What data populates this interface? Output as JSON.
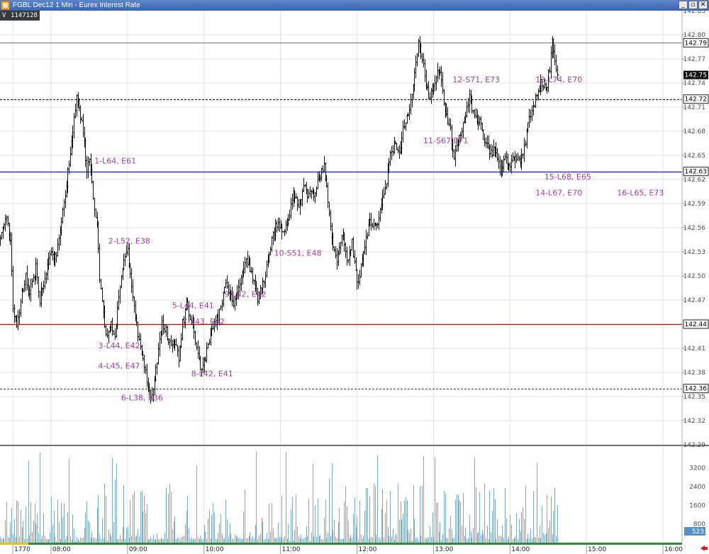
{
  "window": {
    "title": "FGBL Dec12 1 Min - Eurex Interest Rate",
    "min_glyph": "_",
    "max_glyph": "▫",
    "close_glyph": "✕"
  },
  "info": {
    "label": "V",
    "value": "1147128"
  },
  "chart_data": {
    "type": "ohlc",
    "instrument": "FGBL Dec12",
    "interval": "1 Min",
    "price_axis": {
      "ylim": [
        142.29,
        142.83
      ],
      "ticks": [
        "142.83",
        "142.80",
        "142.77",
        "142.74",
        "142.71",
        "142.68",
        "142.65",
        "142.62",
        "142.59",
        "142.56",
        "142.53",
        "142.50",
        "142.47",
        "142.44",
        "142.41",
        "142.38",
        "142.35",
        "142.32",
        "142.29"
      ]
    },
    "time_axis": {
      "xlim_minutes": [
        -40,
        495
      ],
      "ticks": [
        {
          "label": "1770",
          "minute": -30
        },
        {
          "label": "08:00",
          "minute": 0
        },
        {
          "label": "09:00",
          "minute": 60
        },
        {
          "label": "10:00",
          "minute": 120
        },
        {
          "label": "11:00",
          "minute": 180
        },
        {
          "label": "12:00",
          "minute": 240
        },
        {
          "label": "13:00",
          "minute": 300
        },
        {
          "label": "14:00",
          "minute": 360
        },
        {
          "label": "15:00",
          "minute": 420
        },
        {
          "label": "16:00",
          "minute": 480
        }
      ]
    },
    "levels": [
      {
        "price": 142.79,
        "label": "142.79",
        "color": "#888888",
        "style": "solid"
      },
      {
        "price": 142.72,
        "label": "142.72",
        "color": "#000000",
        "style": "dashed"
      },
      {
        "price": 142.63,
        "label": "142.63",
        "color": "#1515b8",
        "style": "solid"
      },
      {
        "price": 142.44,
        "label": "142.44",
        "color": "#cc0000",
        "style": "solid"
      },
      {
        "price": 142.36,
        "label": "142.36",
        "color": "#444444",
        "style": "dashed"
      }
    ],
    "last_price": {
      "price": 142.75,
      "label": "142.75"
    },
    "keypoints": [
      [
        -40,
        142.55
      ],
      [
        -35,
        142.57
      ],
      [
        -32,
        142.55
      ],
      [
        -30,
        142.46
      ],
      [
        -27,
        142.44
      ],
      [
        -24,
        142.47
      ],
      [
        -20,
        142.5
      ],
      [
        -17,
        142.48
      ],
      [
        -12,
        142.51
      ],
      [
        -9,
        142.47
      ],
      [
        -5,
        142.5
      ],
      [
        0,
        142.53
      ],
      [
        4,
        142.52
      ],
      [
        7,
        142.56
      ],
      [
        10,
        142.59
      ],
      [
        14,
        142.64
      ],
      [
        17,
        142.68
      ],
      [
        20,
        142.72
      ],
      [
        23,
        142.7
      ],
      [
        25,
        142.68
      ],
      [
        28,
        142.63
      ],
      [
        30,
        142.65
      ],
      [
        33,
        142.6
      ],
      [
        36,
        142.56
      ],
      [
        38,
        142.5
      ],
      [
        41,
        142.45
      ],
      [
        44,
        142.42
      ],
      [
        47,
        142.44
      ],
      [
        50,
        142.43
      ],
      [
        53,
        142.47
      ],
      [
        57,
        142.52
      ],
      [
        60,
        142.53
      ],
      [
        63,
        142.49
      ],
      [
        66,
        142.45
      ],
      [
        69,
        142.42
      ],
      [
        72,
        142.4
      ],
      [
        75,
        142.37
      ],
      [
        78,
        142.35
      ],
      [
        81,
        142.37
      ],
      [
        84,
        142.41
      ],
      [
        87,
        142.44
      ],
      [
        90,
        142.43
      ],
      [
        94,
        142.41
      ],
      [
        97,
        142.42
      ],
      [
        100,
        142.4
      ],
      [
        103,
        142.44
      ],
      [
        106,
        142.46
      ],
      [
        109,
        142.45
      ],
      [
        112,
        142.43
      ],
      [
        115,
        142.4
      ],
      [
        118,
        142.38
      ],
      [
        121,
        142.4
      ],
      [
        124,
        142.42
      ],
      [
        128,
        142.44
      ],
      [
        131,
        142.45
      ],
      [
        134,
        142.47
      ],
      [
        137,
        142.49
      ],
      [
        140,
        142.48
      ],
      [
        143,
        142.46
      ],
      [
        146,
        142.48
      ],
      [
        150,
        142.51
      ],
      [
        154,
        142.52
      ],
      [
        158,
        142.5
      ],
      [
        162,
        142.47
      ],
      [
        166,
        142.49
      ],
      [
        170,
        142.52
      ],
      [
        174,
        142.55
      ],
      [
        178,
        142.57
      ],
      [
        182,
        142.55
      ],
      [
        186,
        142.57
      ],
      [
        190,
        142.6
      ],
      [
        194,
        142.59
      ],
      [
        198,
        142.61
      ],
      [
        202,
        142.6
      ],
      [
        206,
        142.6
      ],
      [
        210,
        142.62
      ],
      [
        214,
        142.64
      ],
      [
        218,
        142.58
      ],
      [
        221,
        142.54
      ],
      [
        224,
        142.52
      ],
      [
        228,
        142.55
      ],
      [
        232,
        142.52
      ],
      [
        236,
        142.54
      ],
      [
        240,
        142.49
      ],
      [
        243,
        142.51
      ],
      [
        246,
        142.54
      ],
      [
        250,
        142.57
      ],
      [
        254,
        142.56
      ],
      [
        258,
        142.58
      ],
      [
        262,
        142.61
      ],
      [
        266,
        142.65
      ],
      [
        270,
        142.67
      ],
      [
        273,
        142.65
      ],
      [
        276,
        142.68
      ],
      [
        280,
        142.7
      ],
      [
        284,
        142.74
      ],
      [
        288,
        142.79
      ],
      [
        291,
        142.77
      ],
      [
        294,
        142.74
      ],
      [
        297,
        142.72
      ],
      [
        300,
        142.74
      ],
      [
        304,
        142.76
      ],
      [
        307,
        142.73
      ],
      [
        310,
        142.7
      ],
      [
        313,
        142.68
      ],
      [
        316,
        142.65
      ],
      [
        320,
        142.67
      ],
      [
        324,
        142.69
      ],
      [
        328,
        142.72
      ],
      [
        332,
        142.7
      ],
      [
        336,
        142.69
      ],
      [
        340,
        142.67
      ],
      [
        344,
        142.65
      ],
      [
        348,
        142.66
      ],
      [
        352,
        142.63
      ],
      [
        356,
        142.65
      ],
      [
        360,
        142.64
      ],
      [
        364,
        142.65
      ],
      [
        368,
        142.64
      ],
      [
        372,
        142.67
      ],
      [
        376,
        142.7
      ],
      [
        380,
        142.72
      ],
      [
        384,
        142.74
      ],
      [
        388,
        142.73
      ],
      [
        391,
        142.76
      ],
      [
        393,
        142.79
      ],
      [
        395,
        142.77
      ],
      [
        397,
        142.75
      ]
    ],
    "volume_axis": {
      "ylim": [
        0,
        4100
      ],
      "ticks": [
        "3200",
        "2400",
        "1600",
        "800"
      ],
      "last_volume": "523"
    },
    "annotations": [
      {
        "text": "1-L64, E61",
        "minute": 34,
        "price": 142.64
      },
      {
        "text": "2-L52, E38",
        "minute": 45,
        "price": 142.54
      },
      {
        "text": "3-L44, E42",
        "minute": 37,
        "price": 142.41
      },
      {
        "text": "4-L45, E47",
        "minute": 37,
        "price": 142.385
      },
      {
        "text": "5-L44, E41",
        "minute": 95,
        "price": 142.46
      },
      {
        "text": "6-L38, E36",
        "minute": 55,
        "price": 142.345
      },
      {
        "text": "7-S43, E42",
        "minute": 103,
        "price": 142.44
      },
      {
        "text": "8-L42, E41",
        "minute": 110,
        "price": 142.375
      },
      {
        "text": "9-L42, E42",
        "minute": 136,
        "price": 142.474
      },
      {
        "text": "10-S51, E48",
        "minute": 175,
        "price": 142.525
      },
      {
        "text": "11-S67,E71",
        "minute": 292,
        "price": 142.665
      },
      {
        "text": "12-S71, E73",
        "minute": 315,
        "price": 142.741
      },
      {
        "text": "13-L74, E70",
        "minute": 380,
        "price": 142.741
      },
      {
        "text": "14-L67, E70",
        "minute": 380,
        "price": 142.6
      },
      {
        "text": "15-L68, E65",
        "minute": 387,
        "price": 142.62
      },
      {
        "text": "16-L65, E73",
        "minute": 444,
        "price": 142.6
      }
    ]
  }
}
